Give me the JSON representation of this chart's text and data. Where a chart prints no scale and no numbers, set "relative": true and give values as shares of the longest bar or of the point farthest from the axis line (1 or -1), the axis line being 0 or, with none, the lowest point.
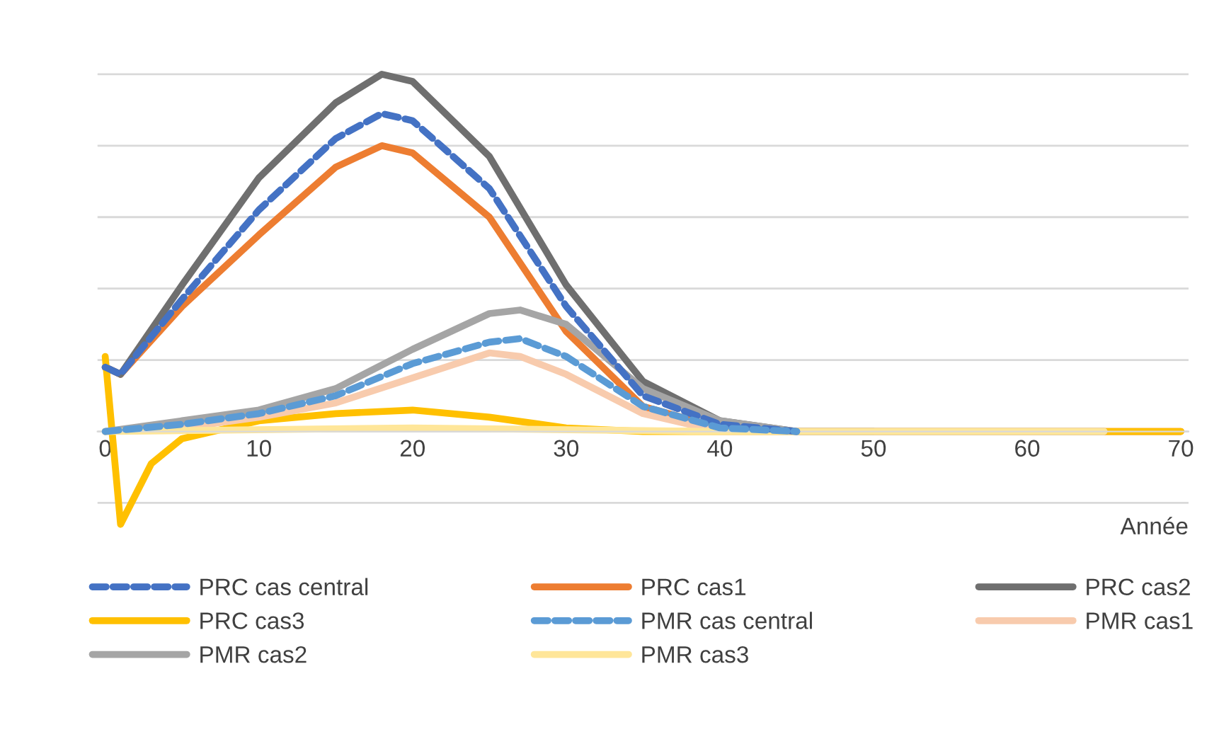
{
  "chart_data": {
    "type": "line",
    "relative": true,
    "xlabel": "Année",
    "xlim": [
      -0.5,
      70.5
    ],
    "xticks": [
      0,
      10,
      20,
      30,
      40,
      50,
      60,
      70
    ],
    "grid": "y",
    "legend": "bottom",
    "marker": "none",
    "series": [
      {
        "name": "PRC cas central",
        "color": "#4472c4",
        "line_style": "dashed",
        "x": [
          0,
          1,
          5,
          10,
          15,
          18,
          20,
          25,
          30,
          35,
          40,
          45
        ],
        "values": [
          0.18,
          0.16,
          0.37,
          0.62,
          0.82,
          0.89,
          0.87,
          0.68,
          0.35,
          0.1,
          0.02,
          0
        ]
      },
      {
        "name": "PRC cas1",
        "color": "#ed7d31",
        "line_style": "solid",
        "x": [
          0,
          1,
          5,
          10,
          15,
          18,
          20,
          25,
          30,
          35,
          40,
          45,
          50,
          60,
          70
        ],
        "values": [
          0.18,
          0.16,
          0.35,
          0.55,
          0.74,
          0.8,
          0.78,
          0.6,
          0.28,
          0.07,
          0.01,
          0,
          0,
          0,
          0
        ]
      },
      {
        "name": "PRC cas2",
        "color": "#6f6f6f",
        "line_style": "solid",
        "x": [
          0,
          1,
          5,
          10,
          15,
          18,
          20,
          25,
          30,
          35,
          40,
          45,
          50
        ],
        "values": [
          0.18,
          0.16,
          0.41,
          0.71,
          0.92,
          1.0,
          0.98,
          0.77,
          0.41,
          0.14,
          0.03,
          0,
          0
        ]
      },
      {
        "name": "PRC cas3",
        "color": "#ffc000",
        "line_style": "solid",
        "x": [
          0,
          1,
          3,
          5,
          10,
          15,
          20,
          25,
          30,
          35,
          40,
          50,
          60,
          70
        ],
        "values": [
          0.21,
          -0.26,
          -0.09,
          -0.02,
          0.03,
          0.05,
          0.06,
          0.04,
          0.01,
          0,
          0,
          0,
          0,
          0
        ]
      },
      {
        "name": "PMR cas central",
        "color": "#5b9bd5",
        "line_style": "dashed",
        "x": [
          0,
          5,
          10,
          15,
          20,
          25,
          27,
          30,
          35,
          40,
          45
        ],
        "values": [
          0,
          0.02,
          0.05,
          0.1,
          0.19,
          0.25,
          0.26,
          0.21,
          0.07,
          0.01,
          0
        ]
      },
      {
        "name": "PMR cas1",
        "color": "#f8cbad",
        "line_style": "solid",
        "x": [
          0,
          5,
          10,
          15,
          20,
          25,
          27,
          30,
          35,
          40,
          45,
          55,
          65
        ],
        "values": [
          0,
          0.01,
          0.04,
          0.08,
          0.15,
          0.22,
          0.21,
          0.16,
          0.05,
          0,
          0,
          0,
          0
        ]
      },
      {
        "name": "PMR cas2",
        "color": "#a5a5a5",
        "line_style": "solid",
        "x": [
          0,
          5,
          10,
          15,
          20,
          25,
          27,
          30,
          35,
          40,
          45,
          55,
          65
        ],
        "values": [
          0,
          0.03,
          0.06,
          0.12,
          0.23,
          0.33,
          0.34,
          0.3,
          0.12,
          0.03,
          0,
          0,
          0
        ]
      },
      {
        "name": "PMR cas3",
        "color": "#ffe699",
        "line_style": "solid",
        "x": [
          0,
          20,
          40,
          65
        ],
        "values": [
          0,
          0.01,
          0,
          0
        ]
      }
    ]
  }
}
